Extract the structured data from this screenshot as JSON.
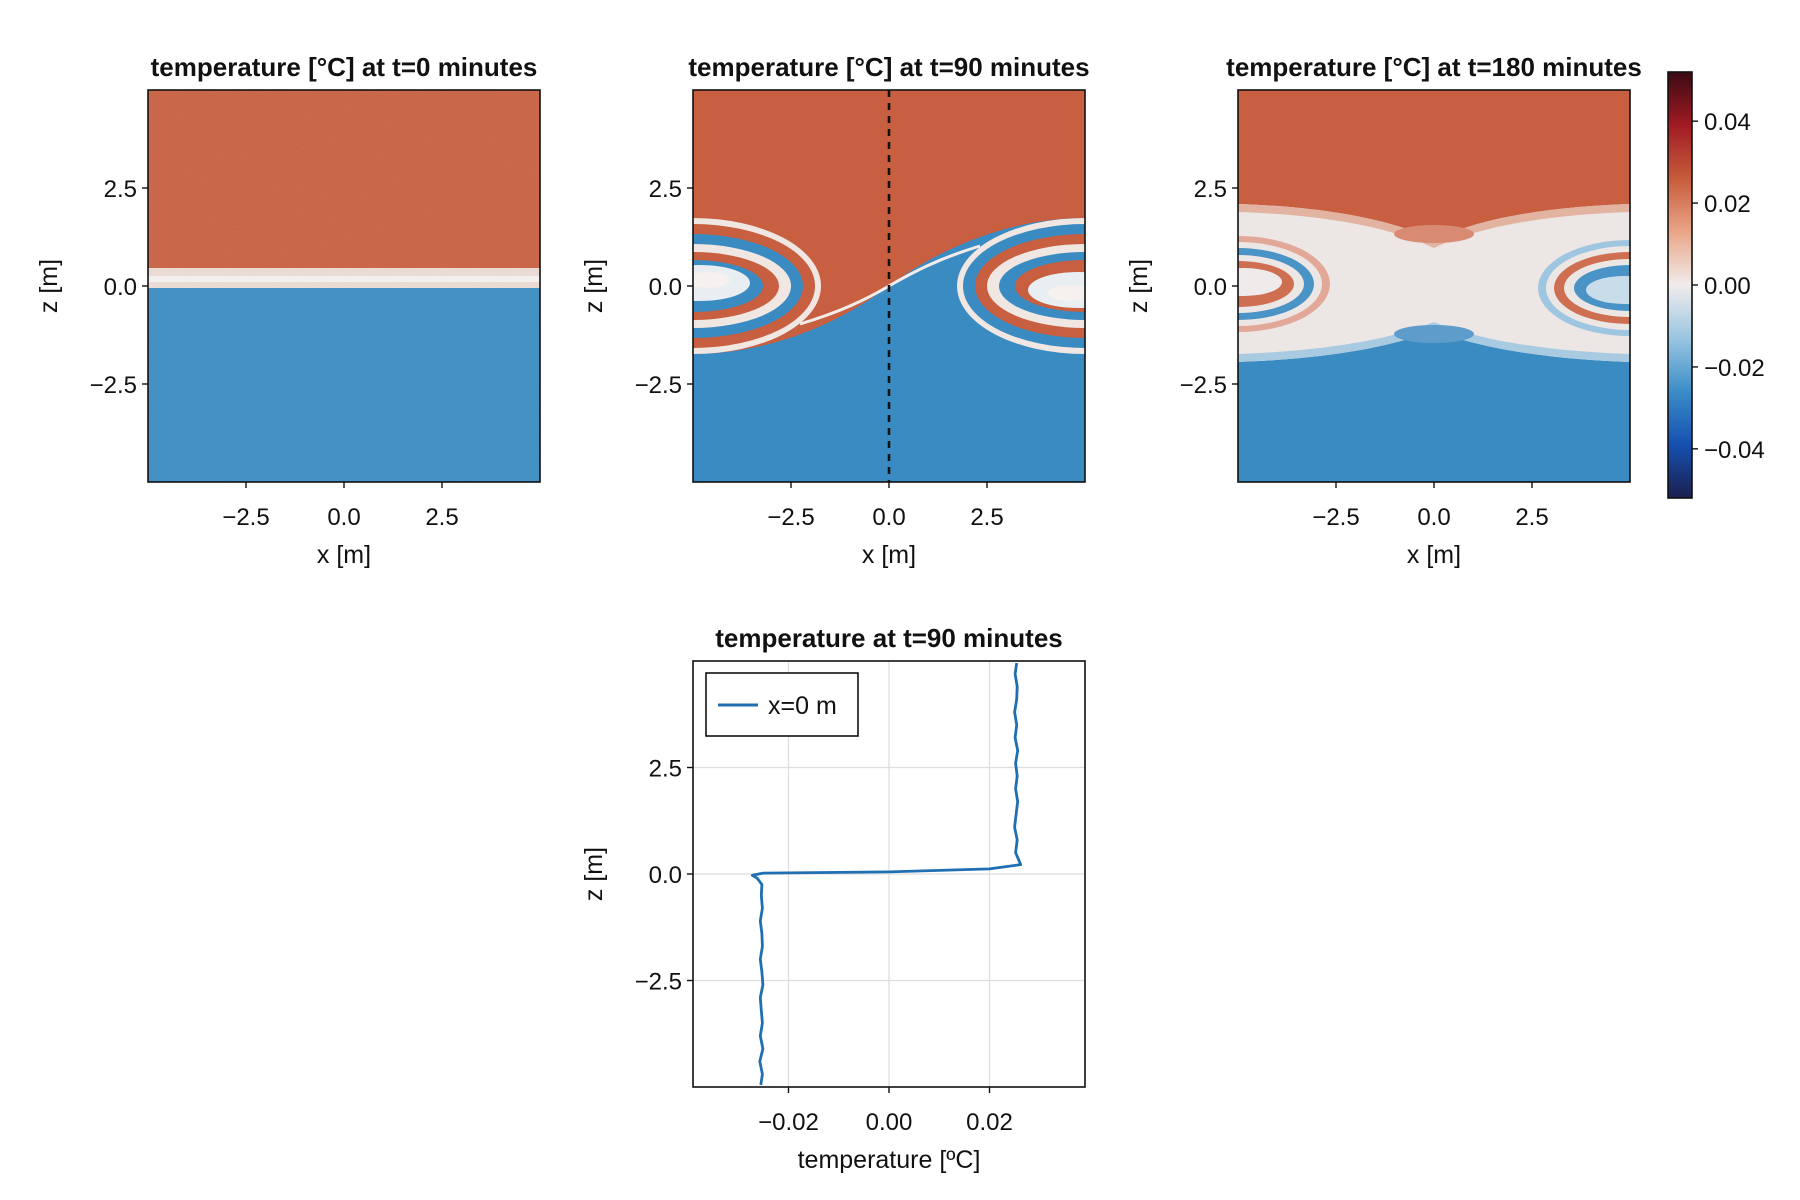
{
  "chart_data": [
    {
      "type": "heatmap",
      "title": "temperature [°C] at t=0 minutes",
      "xlabel": "x [m]",
      "ylabel": "z [m]",
      "xlim": [
        -5,
        5
      ],
      "ylim": [
        -5,
        5
      ],
      "xticks": [
        -2.5,
        0.0,
        2.5
      ],
      "yticks": [
        -2.5,
        0.0,
        2.5
      ],
      "tick_labels": [
        "−2.5",
        "0.0",
        "2.5"
      ],
      "field": "two layers: +0.025 above z=0, −0.025 below z=0, thin mixed interface, noisy",
      "values": {
        "upper_layer": 0.025,
        "lower_layer": -0.025,
        "interface_z": 0.0
      }
    },
    {
      "type": "heatmap",
      "title": "temperature [°C] at t=90 minutes",
      "xlabel": "x [m]",
      "ylabel": "z [m]",
      "xlim": [
        -5,
        5
      ],
      "ylim": [
        -5,
        5
      ],
      "xticks": [
        -2.5,
        0.0,
        2.5
      ],
      "yticks": [
        -2.5,
        0.0,
        2.5
      ],
      "tick_labels": [
        "−2.5",
        "0.0",
        "2.5"
      ],
      "field": "Kelvin–Helmholtz billows with rolled-up vortex cores at x=-5 and x=5, z=0",
      "values": {
        "upper_layer": 0.025,
        "lower_layer": -0.025,
        "billow_amplitude": 1.7
      },
      "annotation_line": {
        "x": 0.0,
        "style": "dashed",
        "color": "#111111"
      }
    },
    {
      "type": "heatmap",
      "title": "temperature [°C] at t=180 minutes",
      "xlabel": "x [m]",
      "ylabel": "z [m]",
      "xlim": [
        -5,
        5
      ],
      "ylim": [
        -5,
        5
      ],
      "xticks": [
        -2.5,
        0.0,
        2.5
      ],
      "yticks": [
        -2.5,
        0.0,
        2.5
      ],
      "tick_labels": [
        "−2.5",
        "0.0",
        "2.5"
      ],
      "field": "mixed layer between z=-1.9 and z=1.9 with remnant vortex cores at x=±5",
      "values": {
        "upper_layer": 0.025,
        "lower_layer": -0.025,
        "mixed_half_thickness": 1.9
      }
    },
    {
      "type": "colorbar",
      "colormap": "balance",
      "range": [
        -0.052,
        0.052
      ],
      "ticks": [
        0.04,
        0.02,
        0.0,
        -0.02,
        -0.04
      ],
      "tick_labels": [
        "0.04",
        "0.02",
        "0.00",
        "−0.02",
        "−0.04"
      ],
      "colors": [
        "#1b1f4e",
        "#1550b0",
        "#3b8dc8",
        "#9ac6e2",
        "#f1ecec",
        "#eaa587",
        "#c65c3b",
        "#a11b23",
        "#3b0a13"
      ]
    },
    {
      "type": "line",
      "title": "temperature at t=90 minutes",
      "xlabel": "temperature [ºC]",
      "ylabel": "z [m]",
      "xlim": [
        -0.039,
        0.039
      ],
      "ylim": [
        -5,
        5
      ],
      "xticks": [
        -0.02,
        0.0,
        0.02
      ],
      "xtick_labels": [
        "−0.02",
        "0.00",
        "0.02"
      ],
      "yticks": [
        -2.5,
        0.0,
        2.5
      ],
      "ytick_labels": [
        "−2.5",
        "0.0",
        "2.5"
      ],
      "grid": true,
      "legend": {
        "position": "top-left",
        "entries": [
          "x=0 m"
        ]
      },
      "series": [
        {
          "name": "x=0 m",
          "color": "#1f6fb2",
          "x": [
            -0.0255,
            -0.0252,
            -0.0257,
            -0.0251,
            -0.0256,
            -0.0252,
            -0.0254,
            -0.0256,
            -0.0251,
            -0.0253,
            -0.0256,
            -0.0252,
            -0.0253,
            -0.0256,
            -0.0252,
            -0.0254,
            -0.0253,
            -0.0262,
            -0.0272,
            -0.025,
            0.0,
            0.02,
            0.0262,
            0.0252,
            0.0255,
            0.025,
            0.0253,
            0.0256,
            0.0252,
            0.0255,
            0.0252,
            0.0256,
            0.0251,
            0.0254,
            0.025,
            0.0254,
            0.0255,
            0.0251,
            0.0254
          ],
          "y": [
            -4.95,
            -4.7,
            -4.4,
            -4.1,
            -3.8,
            -3.5,
            -3.2,
            -2.9,
            -2.6,
            -2.3,
            -2.0,
            -1.7,
            -1.4,
            -1.1,
            -0.8,
            -0.5,
            -0.25,
            -0.1,
            -0.03,
            0.02,
            0.05,
            0.12,
            0.22,
            0.5,
            0.8,
            1.1,
            1.4,
            1.7,
            2.0,
            2.3,
            2.6,
            2.9,
            3.2,
            3.5,
            3.8,
            4.1,
            4.4,
            4.7,
            4.95
          ]
        }
      ]
    }
  ]
}
